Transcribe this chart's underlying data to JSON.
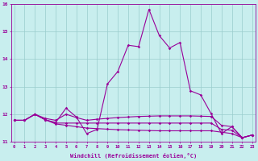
{
  "xlabel": "Windchill (Refroidissement éolien,°C)",
  "bg_color": "#c8eeee",
  "line_color": "#990099",
  "x": [
    0,
    1,
    2,
    3,
    4,
    5,
    6,
    7,
    8,
    9,
    10,
    11,
    12,
    13,
    14,
    15,
    16,
    17,
    18,
    19,
    20,
    21,
    22,
    23
  ],
  "line1": [
    11.78,
    11.78,
    12.0,
    11.8,
    11.7,
    12.22,
    11.9,
    11.3,
    11.45,
    13.1,
    13.55,
    14.5,
    14.45,
    15.8,
    14.85,
    14.4,
    14.6,
    12.85,
    12.7,
    12.02,
    11.3,
    11.55,
    11.15,
    11.25
  ],
  "line2": [
    11.78,
    11.78,
    12.0,
    11.85,
    11.78,
    12.0,
    11.88,
    11.78,
    11.82,
    11.85,
    11.88,
    11.9,
    11.92,
    11.93,
    11.94,
    11.94,
    11.94,
    11.94,
    11.93,
    11.92,
    11.6,
    11.55,
    11.15,
    11.25
  ],
  "line3": [
    11.78,
    11.78,
    12.0,
    11.8,
    11.68,
    11.68,
    11.68,
    11.68,
    11.68,
    11.68,
    11.68,
    11.68,
    11.68,
    11.68,
    11.68,
    11.68,
    11.68,
    11.68,
    11.68,
    11.68,
    11.45,
    11.42,
    11.15,
    11.25
  ],
  "line4": [
    11.78,
    11.78,
    12.0,
    11.8,
    11.65,
    11.6,
    11.55,
    11.5,
    11.48,
    11.46,
    11.44,
    11.43,
    11.42,
    11.41,
    11.4,
    11.4,
    11.4,
    11.4,
    11.4,
    11.4,
    11.35,
    11.3,
    11.15,
    11.25
  ],
  "ylim": [
    11.0,
    16.0
  ],
  "xlim": [
    0,
    23
  ],
  "yticks": [
    11,
    12,
    13,
    14,
    15,
    16
  ],
  "xticks": [
    0,
    1,
    2,
    3,
    4,
    5,
    6,
    7,
    8,
    9,
    10,
    11,
    12,
    13,
    14,
    15,
    16,
    17,
    18,
    19,
    20,
    21,
    22,
    23
  ],
  "grid_color": "#99cccc",
  "marker": "D",
  "marker_size": 1.8,
  "linewidth": 0.8
}
